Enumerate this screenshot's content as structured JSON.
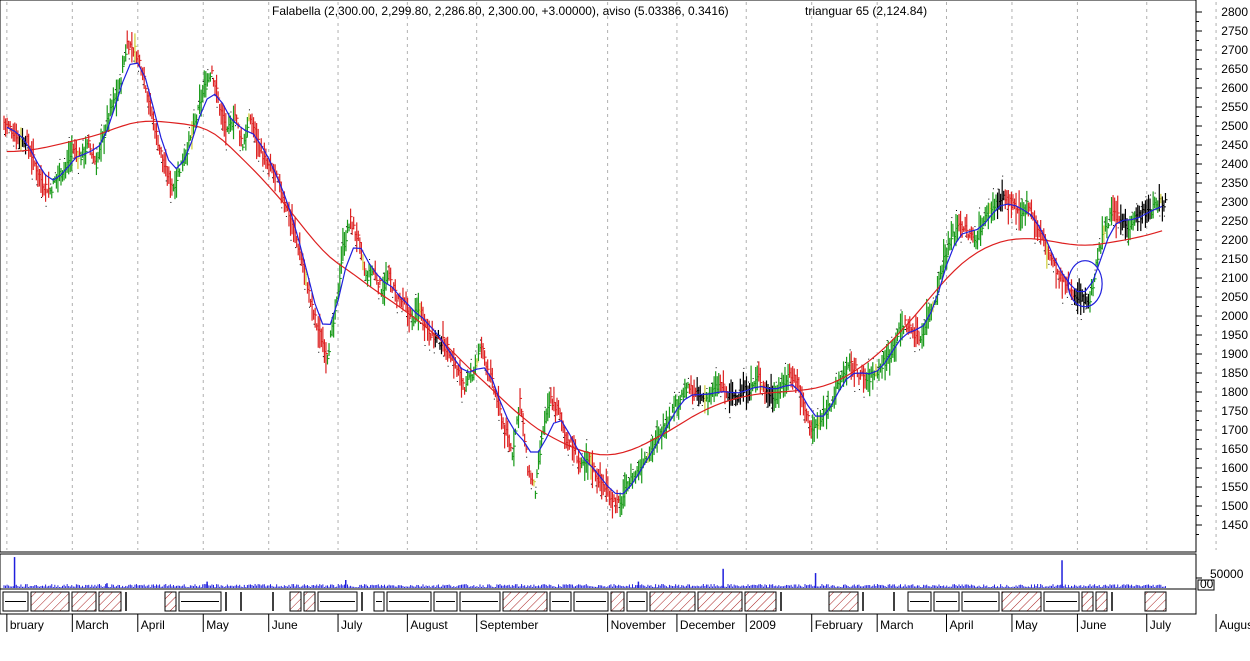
{
  "title": "Falabella (2,300.00, 2,299.80, 2,286.80, 2,300.00, +3.00000), aviso (5.03386, 0.3416)",
  "title_overlay": "trianguar 65 (2,124.84)",
  "colors": {
    "up": "#1a9a1a",
    "down": "#dd2222",
    "neutral": "#000000",
    "alert": "#cccc33",
    "fast_ma": "#1f1fdd",
    "slow_ma": "#dd1f1f",
    "grid": "#b0b0b0",
    "volume": "#1f1fdd",
    "hatch": "#aa2222"
  },
  "chart_data": {
    "type": "bar",
    "title": "Falabella (2,300.00, 2,299.80, 2,286.80, 2,300.00, +3.00000)",
    "xlabel": "",
    "ylabel": "",
    "ylim": [
      1400,
      2820
    ],
    "y_ticks": [
      1450,
      1500,
      1550,
      1600,
      1650,
      1700,
      1750,
      1800,
      1850,
      1900,
      1950,
      2000,
      2050,
      2100,
      2150,
      2200,
      2250,
      2300,
      2350,
      2400,
      2450,
      2500,
      2550,
      2600,
      2650,
      2700,
      2750,
      2800
    ],
    "x_labels": [
      "bruary",
      "March",
      "April",
      "May",
      "June",
      "July",
      "August",
      "September",
      "November",
      "December",
      "2009",
      "February",
      "March",
      "April",
      "May",
      "June",
      "July",
      "August"
    ],
    "x_label_weeks": [
      0,
      8.5,
      17,
      25.5,
      34,
      43,
      52,
      61,
      78,
      87,
      96,
      104.5,
      113,
      122,
      130.5,
      139,
      148,
      157
    ],
    "price_weekly": [
      2510,
      2490,
      2470,
      2460,
      2400,
      2350,
      2330,
      2370,
      2390,
      2440,
      2420,
      2450,
      2400,
      2480,
      2550,
      2600,
      2720,
      2700,
      2650,
      2550,
      2460,
      2380,
      2340,
      2400,
      2450,
      2520,
      2600,
      2650,
      2550,
      2480,
      2530,
      2450,
      2520,
      2460,
      2400,
      2380,
      2330,
      2270,
      2200,
      2120,
      2020,
      1950,
      1900,
      2000,
      2180,
      2250,
      2200,
      2100,
      2120,
      2070,
      2100,
      2050,
      2030,
      1990,
      2020,
      1970,
      1940,
      1930,
      1900,
      1850,
      1810,
      1860,
      1920,
      1850,
      1780,
      1700,
      1640,
      1780,
      1600,
      1540,
      1700,
      1780,
      1750,
      1680,
      1650,
      1600,
      1620,
      1580,
      1550,
      1520,
      1500,
      1560,
      1580,
      1620,
      1650,
      1680,
      1720,
      1760,
      1790,
      1810,
      1790,
      1780,
      1800,
      1820,
      1790,
      1790,
      1800,
      1810,
      1840,
      1800,
      1790,
      1810,
      1850,
      1830,
      1750,
      1700,
      1720,
      1760,
      1800,
      1850,
      1870,
      1850,
      1830,
      1850,
      1870,
      1900,
      1950,
      1980,
      1960,
      1940,
      2000,
      2050,
      2150,
      2200,
      2250,
      2220,
      2200,
      2240,
      2280,
      2300,
      2310,
      2290,
      2260,
      2300,
      2240,
      2200,
      2150,
      2100,
      2080,
      2060,
      2050,
      2040,
      2150,
      2240,
      2270,
      2250,
      2240,
      2260,
      2270,
      2280,
      2300
    ],
    "series": [
      {
        "name": "Falabella",
        "kind": "ohlc",
        "values": "price_weekly"
      },
      {
        "name": "",
        "kind": "line",
        "color": "#1f1fdd",
        "smoothing": "fast"
      },
      {
        "name": "trianguar 65",
        "kind": "line",
        "color": "#dd1f1f",
        "smoothing": "slow",
        "last_value": 2124.84
      }
    ],
    "volume": {
      "tick_label": "50000",
      "ylim": [
        0,
        60000
      ],
      "spikes": [
        [
          1,
          58000
        ],
        [
          13,
          9000
        ],
        [
          26,
          12000
        ],
        [
          44,
          15000
        ],
        [
          82,
          12000
        ],
        [
          93,
          36000
        ],
        [
          105,
          28000
        ],
        [
          137,
          52000
        ]
      ]
    },
    "annotation": {
      "type": "circle",
      "week": 140,
      "price": 2085
    },
    "grid": true,
    "legend": "none"
  }
}
